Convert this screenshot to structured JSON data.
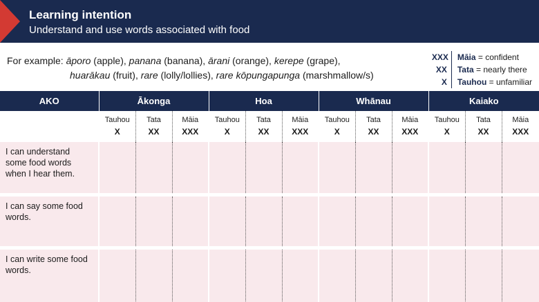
{
  "banner": {
    "title": "Learning intention",
    "subtitle": "Understand and use words associated with food"
  },
  "examples": {
    "lead": "For example:",
    "line1": [
      {
        "maori": "āporo",
        "english": " (apple), "
      },
      {
        "maori": "panana",
        "english": " (banana), "
      },
      {
        "maori": "ārani",
        "english": " (orange), "
      },
      {
        "maori": "kerepe",
        "english": " (grape),"
      }
    ],
    "line2": [
      {
        "maori": "huarākau",
        "english": " (fruit), "
      },
      {
        "maori": "rare",
        "english": " (lolly/lollies), "
      },
      {
        "maori": "rare kōpungapunga",
        "english": " (marshmallow/s)"
      }
    ]
  },
  "legend": [
    {
      "symbol": "XXX",
      "term": "Māia",
      "meaning": " = confident"
    },
    {
      "symbol": "XX",
      "term": "Tata",
      "meaning": " = nearly there"
    },
    {
      "symbol": "X",
      "term": "Tauhou",
      "meaning": " = unfamiliar"
    }
  ],
  "table": {
    "first_header": "AKO",
    "groups": [
      "Ākonga",
      "Hoa",
      "Whānau",
      "Kaiako"
    ],
    "levels": [
      {
        "label": "Tauhou",
        "mark": "X"
      },
      {
        "label": "Tata",
        "mark": "XX"
      },
      {
        "label": "Māia",
        "mark": "XXX"
      }
    ],
    "rows": [
      "I can understand some food words when I hear them.",
      "I can say some food words.",
      "I can write some food words."
    ]
  },
  "colors": {
    "navy": "#1a2a4f",
    "red": "#d33a33",
    "pink": "#f9e9ec"
  }
}
